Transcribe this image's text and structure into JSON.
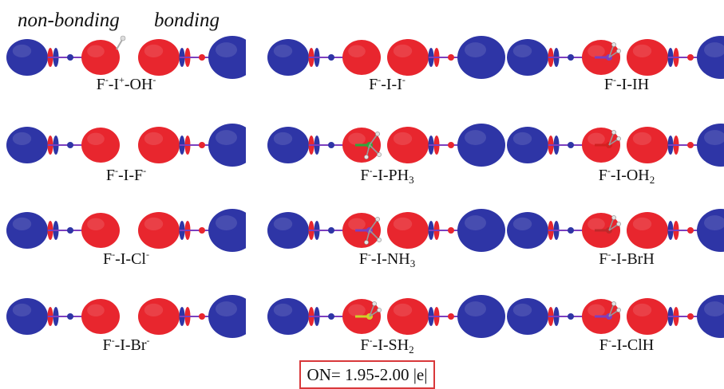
{
  "header": {
    "non_bonding": "non-bonding",
    "bonding": "bonding"
  },
  "colors": {
    "red_lobe": "#e8262e",
    "blue_lobe": "#2e35a6",
    "bond_purple": "#7c3fbf",
    "highlight": "#d9383a",
    "P_green": "#2fa63a",
    "S_yellow": "#cfd12a",
    "Br_red": "#c0282a",
    "O_red": "#d22020"
  },
  "panels": [
    {
      "label": {
        "base": "F",
        "charge": "-",
        "rest": "-I",
        "rest_sup": "+",
        "tail": "-OH",
        "tail_sup": "-"
      },
      "substituent": "OH"
    },
    {
      "label": {
        "base": "F",
        "charge": "-",
        "rest": "-I-I",
        "rest_sup": "-",
        "tail": "",
        "tail_sup": ""
      },
      "substituent": "I"
    },
    {
      "label": {
        "base": "F",
        "charge": "-",
        "rest": "-I-IH",
        "rest_sup": "",
        "tail": "",
        "tail_sup": ""
      },
      "substituent": "IH"
    },
    {
      "label": {
        "base": "F",
        "charge": "-",
        "rest": "-I-F",
        "rest_sup": "-",
        "tail": "",
        "tail_sup": ""
      },
      "substituent": "F"
    },
    {
      "label": {
        "base": "F",
        "charge": "-",
        "rest": "-I-PH",
        "rest_sub": "3",
        "tail": "",
        "tail_sup": ""
      },
      "substituent": "PH3"
    },
    {
      "label": {
        "base": "F",
        "charge": "-",
        "rest": "-I-OH",
        "rest_sub": "2",
        "tail": "",
        "tail_sup": ""
      },
      "substituent": "OH2"
    },
    {
      "label": {
        "base": "F",
        "charge": "-",
        "rest": "-I-Cl",
        "rest_sup": "-",
        "tail": "",
        "tail_sup": ""
      },
      "substituent": "Cl"
    },
    {
      "label": {
        "base": "F",
        "charge": "-",
        "rest": "-I-NH",
        "rest_sub": "3",
        "tail": "",
        "tail_sup": ""
      },
      "substituent": "NH3"
    },
    {
      "label": {
        "base": "F",
        "charge": "-",
        "rest": "-I-BrH",
        "rest_sup": "",
        "tail": "",
        "tail_sup": ""
      },
      "substituent": "BrH"
    },
    {
      "label": {
        "base": "F",
        "charge": "-",
        "rest": "-I-Br",
        "rest_sup": "-",
        "tail": "",
        "tail_sup": ""
      },
      "substituent": "Br"
    },
    {
      "label": {
        "base": "F",
        "charge": "-",
        "rest": "-I-SH",
        "rest_sub": "2",
        "tail": "",
        "tail_sup": ""
      },
      "substituent": "SH2"
    },
    {
      "label": {
        "base": "F",
        "charge": "-",
        "rest": "-I-ClH",
        "rest_sup": "",
        "tail": "",
        "tail_sup": ""
      },
      "substituent": "ClH"
    }
  ],
  "occupation": "ON= 1.95-2.00 |e|"
}
